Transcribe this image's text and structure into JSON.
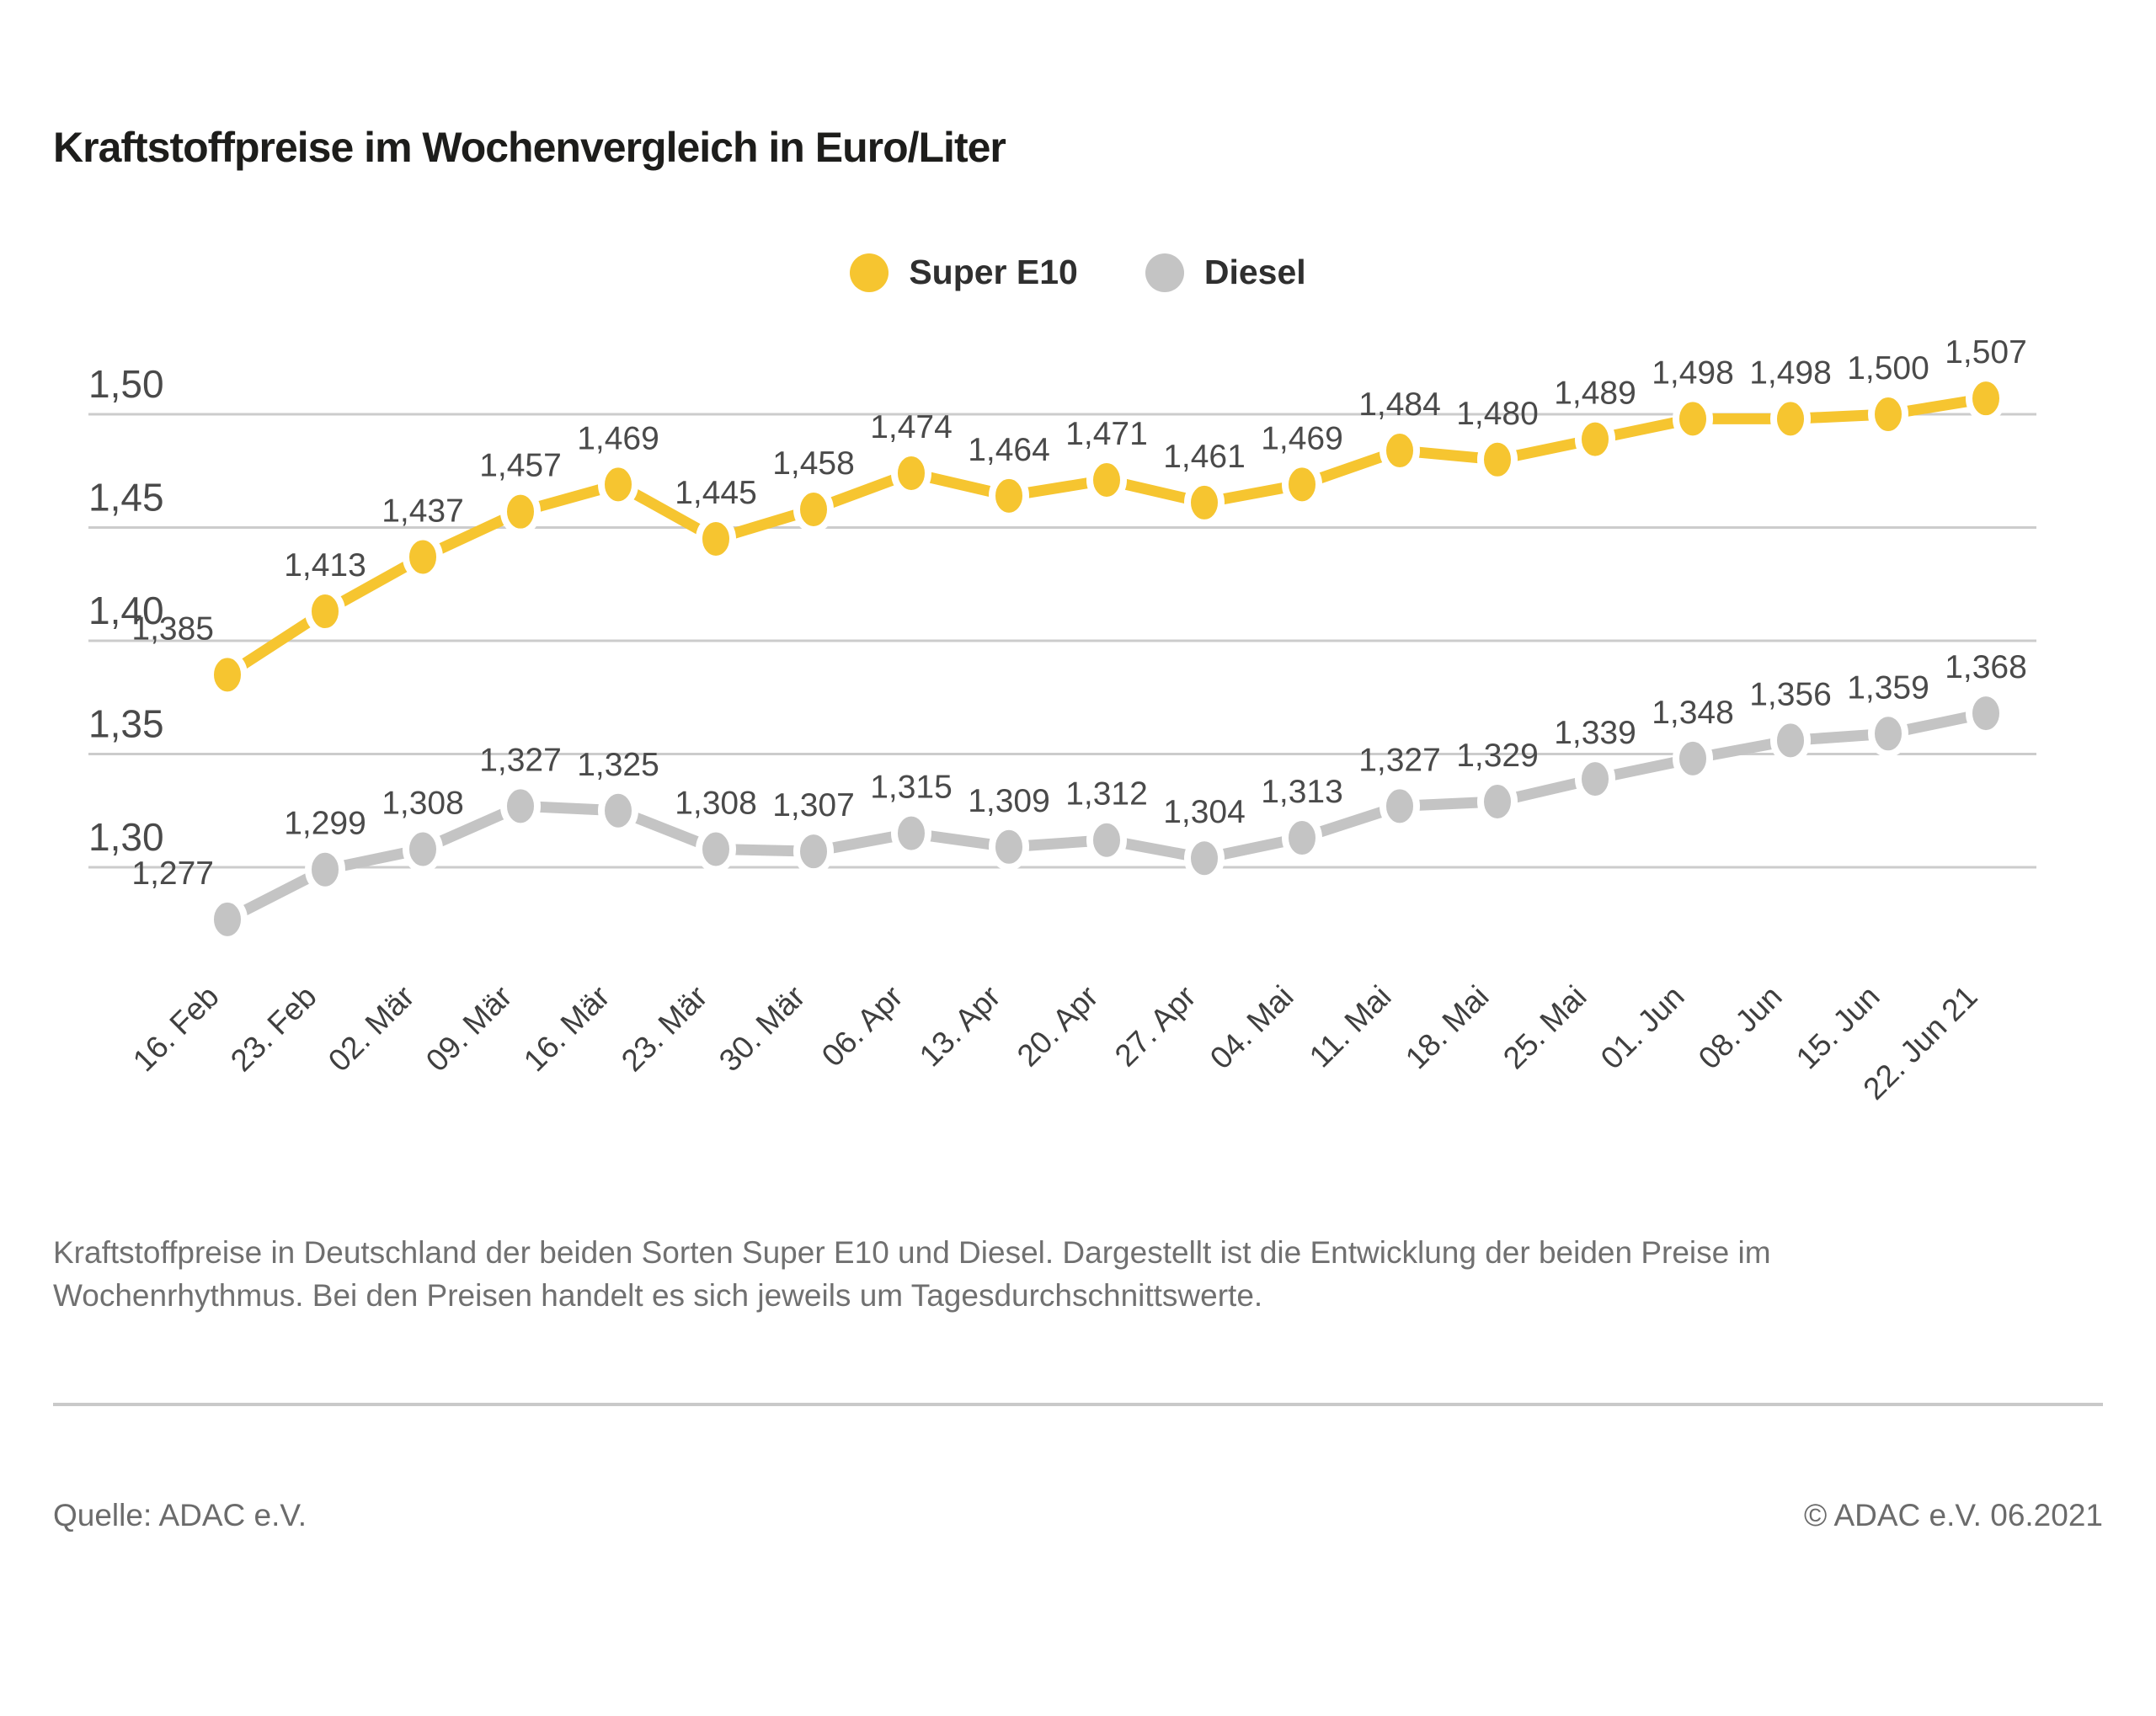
{
  "title": "Kraftstoffpreise im Wochenvergleich in Euro/Liter",
  "legend": {
    "items": [
      {
        "label": "Super E10",
        "color": "#F6C530"
      },
      {
        "label": "Diesel",
        "color": "#C4C4C4"
      }
    ]
  },
  "chart_data": {
    "type": "line",
    "title": "Kraftstoffpreise im Wochenvergleich in Euro/Liter",
    "categories": [
      "16. Feb",
      "23. Feb",
      "02. Mär",
      "09. Mär",
      "16. Mär",
      "23. Mär",
      "30. Mär",
      "06. Apr",
      "13. Apr",
      "20. Apr",
      "27. Apr",
      "04. Mai",
      "11. Mai",
      "18. Mai",
      "25. Mai",
      "01. Jun",
      "08. Jun",
      "15. Jun",
      "22. Jun 21"
    ],
    "series": [
      {
        "name": "Super E10",
        "color": "#F6C530",
        "values": [
          1.385,
          1.413,
          1.437,
          1.457,
          1.469,
          1.445,
          1.458,
          1.474,
          1.464,
          1.471,
          1.461,
          1.469,
          1.484,
          1.48,
          1.489,
          1.498,
          1.498,
          1.5,
          1.507
        ],
        "labels": [
          "1,385",
          "1,413",
          "1,437",
          "1,457",
          "1,469",
          "1,445",
          "1,458",
          "1,474",
          "1,464",
          "1,471",
          "1,461",
          "1,469",
          "1,484",
          "1,480",
          "1,489",
          "1,498",
          "1,498",
          "1,500",
          "1,507"
        ]
      },
      {
        "name": "Diesel",
        "color": "#C4C4C4",
        "values": [
          1.277,
          1.299,
          1.308,
          1.327,
          1.325,
          1.308,
          1.307,
          1.315,
          1.309,
          1.312,
          1.304,
          1.313,
          1.327,
          1.329,
          1.339,
          1.348,
          1.356,
          1.359,
          1.368
        ],
        "labels": [
          "1,277",
          "1,299",
          "1,308",
          "1,327",
          "1,325",
          "1,308",
          "1,307",
          "1,315",
          "1,309",
          "1,312",
          "1,304",
          "1,313",
          "1,327",
          "1,329",
          "1,339",
          "1,348",
          "1,356",
          "1,359",
          "1,368"
        ]
      }
    ],
    "y_ticks": [
      {
        "value": 1.5,
        "label": "1,50"
      },
      {
        "value": 1.45,
        "label": "1,45"
      },
      {
        "value": 1.4,
        "label": "1,40"
      },
      {
        "value": 1.35,
        "label": "1,35"
      },
      {
        "value": 1.3,
        "label": "1,30"
      }
    ],
    "ylim": [
      1.3,
      1.5
    ],
    "xlabel": "",
    "ylabel": "Euro/Liter",
    "grid": "horizontal",
    "legend_position": "top-center",
    "decimal_separator": ",",
    "x_label_rotation": -45
  },
  "caption": {
    "line1": "Kraftstoffpreise in Deutschland der beiden Sorten Super E10 und Diesel. Dargestellt ist die Entwicklung der beiden Preise im",
    "line2": "Wochenrhythmus. Bei den Preisen handelt es sich jeweils um Tagesdurchschnittswerte."
  },
  "footer": {
    "source": "Quelle: ADAC e.V.",
    "copyright": "© ADAC e.V. 06.2021"
  },
  "colors": {
    "super_e10": "#F6C530",
    "diesel": "#C4C4C4",
    "grid": "#CCCCCC",
    "title_text": "#1D1D1B",
    "axis_text": "#4A4A4A",
    "value_label_text": "#4A4A4A",
    "x_label_text": "#3F3F3F",
    "caption_text": "#707070",
    "footer_text": "#6B6B6B"
  }
}
